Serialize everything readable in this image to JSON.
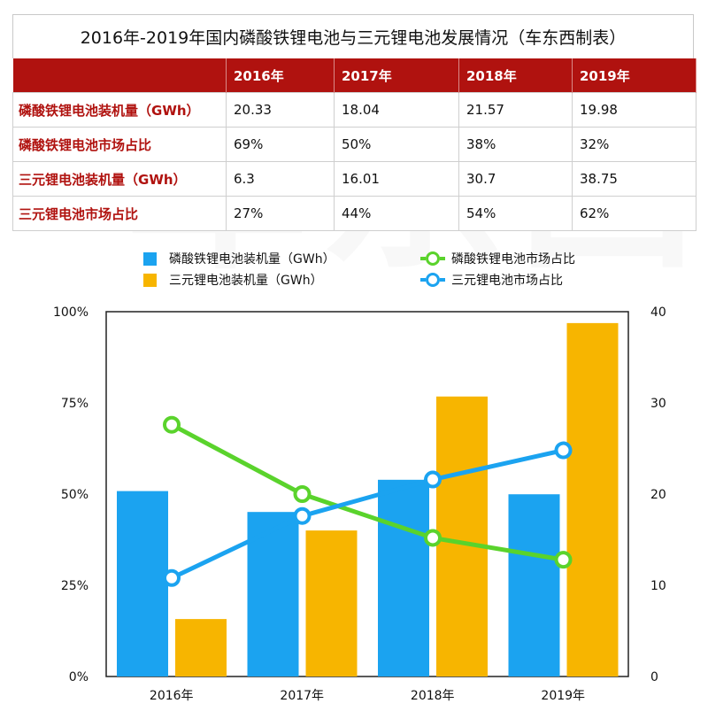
{
  "title": "2016年-2019年国内磷酸铁锂电池与三元锂电池发展情况（车东西制表）",
  "watermark": "车东西",
  "table": {
    "headers": [
      "",
      "2016年",
      "2017年",
      "2018年",
      "2019年"
    ],
    "rows": [
      {
        "label": "磷酸铁锂电池装机量（GWh）",
        "cells": [
          "20.33",
          "18.04",
          "21.57",
          "19.98"
        ]
      },
      {
        "label": "磷酸铁锂电池市场占比",
        "cells": [
          "69%",
          "50%",
          "38%",
          "32%"
        ]
      },
      {
        "label": "三元锂电池装机量（GWh）",
        "cells": [
          "6.3",
          "16.01",
          "30.7",
          "38.75"
        ]
      },
      {
        "label": "三元锂电池市场占比",
        "cells": [
          "27%",
          "44%",
          "54%",
          "62%"
        ]
      }
    ]
  },
  "legend": {
    "lfp_installed": "磷酸铁锂电池装机量（GWh）",
    "ncm_installed": "三元锂电池装机量（GWh）",
    "lfp_share": "磷酸铁锂电池市场占比",
    "ncm_share": "三元锂电池市场占比"
  },
  "colors": {
    "lfp_bar": "#1ba3f0",
    "ncm_bar": "#f7b500",
    "lfp_line": "#5ad32c",
    "ncm_line": "#1ba3f0",
    "header_red": "#b0120f"
  },
  "chart_data": {
    "type": "bar",
    "categories": [
      "2016年",
      "2017年",
      "2018年",
      "2019年"
    ],
    "series": [
      {
        "name": "磷酸铁锂电池装机量（GWh）",
        "kind": "bar",
        "axis": "right",
        "values": [
          20.33,
          18.04,
          21.57,
          19.98
        ]
      },
      {
        "name": "三元锂电池装机量（GWh）",
        "kind": "bar",
        "axis": "right",
        "values": [
          6.3,
          16.01,
          30.7,
          38.75
        ]
      },
      {
        "name": "磷酸铁锂电池市场占比",
        "kind": "line",
        "axis": "left",
        "values": [
          69,
          50,
          38,
          32
        ]
      },
      {
        "name": "三元锂电池市场占比",
        "kind": "line",
        "axis": "left",
        "values": [
          27,
          44,
          54,
          62
        ]
      }
    ],
    "left_axis": {
      "ylim": [
        0,
        100
      ],
      "ticks": [
        "0%",
        "25%",
        "50%",
        "75%",
        "100%"
      ]
    },
    "right_axis": {
      "ylim": [
        0,
        40
      ],
      "ticks": [
        "0",
        "10",
        "20",
        "30",
        "40"
      ]
    },
    "legend_position": "top"
  }
}
